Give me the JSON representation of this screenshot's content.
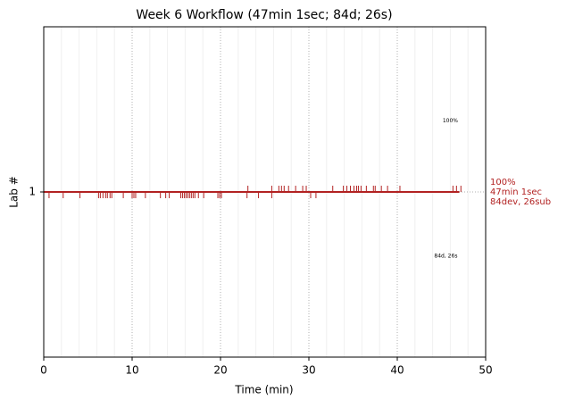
{
  "chart_data": {
    "type": "event_timeline",
    "title": "Week 6 Workflow (47min 1sec; 84d; 26s)",
    "xlabel": "Time (min)",
    "ylabel": "Lab #",
    "xlim": [
      0,
      50
    ],
    "ylim": [
      0,
      2
    ],
    "xticks": [
      0,
      10,
      20,
      30,
      40,
      50
    ],
    "yticks": [
      1
    ],
    "xminorticks": [
      2,
      4,
      6,
      8,
      12,
      14,
      16,
      18,
      22,
      24,
      26,
      28,
      32,
      34,
      36,
      38,
      42,
      44,
      46,
      48
    ],
    "grid": true,
    "color": "#b22222",
    "line": {
      "y": 1,
      "start": 0,
      "end": 47.02
    },
    "up_events": [
      23.1,
      25.8,
      26.6,
      26.9,
      27.2,
      27.7,
      28.5,
      29.3,
      29.7,
      32.7,
      33.9,
      34.3,
      34.7,
      35.1,
      35.4,
      35.6,
      35.9,
      36.5,
      37.3,
      37.5,
      38.2,
      38.9,
      40.3,
      46.3,
      46.7,
      47.2
    ],
    "down_events": [
      0.6,
      2.2,
      4.1,
      6.2,
      6.4,
      6.7,
      7.0,
      7.2,
      7.5,
      7.7,
      9.0,
      10.0,
      10.2,
      10.4,
      11.5,
      13.2,
      13.8,
      14.2,
      15.5,
      15.7,
      15.9,
      16.1,
      16.3,
      16.5,
      16.7,
      16.9,
      17.1,
      17.5,
      18.1,
      19.7,
      19.9,
      20.1,
      23.0,
      24.3,
      25.8,
      30.2,
      30.8
    ],
    "annotations": [
      {
        "text": "100%",
        "x": 46.0,
        "y": 1.43
      },
      {
        "text": "84d, 26s",
        "x": 45.5,
        "y": 0.61
      }
    ],
    "side_labels": [
      "100%",
      "47min 1sec",
      "84dev, 26sub"
    ]
  }
}
